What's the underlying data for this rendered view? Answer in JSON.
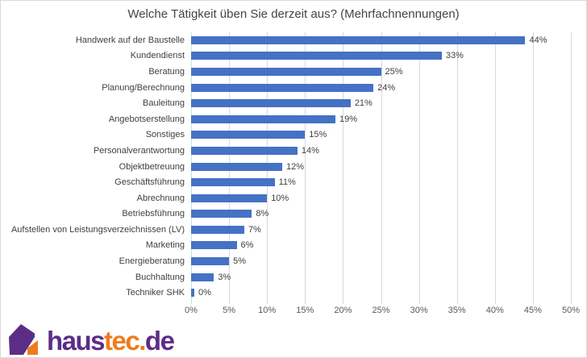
{
  "colors": {
    "bar": "#4472C4",
    "grid": "#D9D9D9",
    "border": "#D9D9D9",
    "title_text": "#444444",
    "axis_text": "#595959",
    "value_text": "#3f3f3f",
    "category_text": "#3f3f3f",
    "logo_purple": "#5C2D87",
    "logo_orange": "#EE7C1E"
  },
  "logo": {
    "haus": "haus",
    "tec": "tec.",
    "de": "de"
  },
  "chart_data": {
    "type": "bar",
    "orientation": "horizontal",
    "title": "Welche Tätigkeit üben Sie derzeit aus? (Mehrfachnennungen)",
    "categories": [
      "Handwerk auf der Baustelle",
      "Kundendienst",
      "Beratung",
      "Planung/Berechnung",
      "Bauleitung",
      "Angebotserstellung",
      "Sonstiges",
      "Personalverantwortung",
      "Objektbetreuung",
      "Geschäftsführung",
      "Abrechnung",
      "Betriebsführung",
      "Aufstellen von Leistungsverzeichnissen (LV)",
      "Marketing",
      "Energieberatung",
      "Buchhaltung",
      "Techniker SHK"
    ],
    "values": [
      44,
      33,
      25,
      24,
      21,
      19,
      15,
      14,
      12,
      11,
      10,
      8,
      7,
      6,
      5,
      3,
      0
    ],
    "value_labels": [
      "44%",
      "33%",
      "25%",
      "24%",
      "21%",
      "19%",
      "15%",
      "14%",
      "12%",
      "11%",
      "10%",
      "8%",
      "7%",
      "6%",
      "5%",
      "3%",
      "0%"
    ],
    "xlabel": "",
    "ylabel": "",
    "xlim": [
      0,
      50
    ],
    "x_ticks": [
      0,
      5,
      10,
      15,
      20,
      25,
      30,
      35,
      40,
      45,
      50
    ],
    "x_tick_labels": [
      "0%",
      "5%",
      "10%",
      "15%",
      "20%",
      "25%",
      "30%",
      "35%",
      "40%",
      "45%",
      "50%"
    ],
    "grid": true,
    "legend": false
  }
}
